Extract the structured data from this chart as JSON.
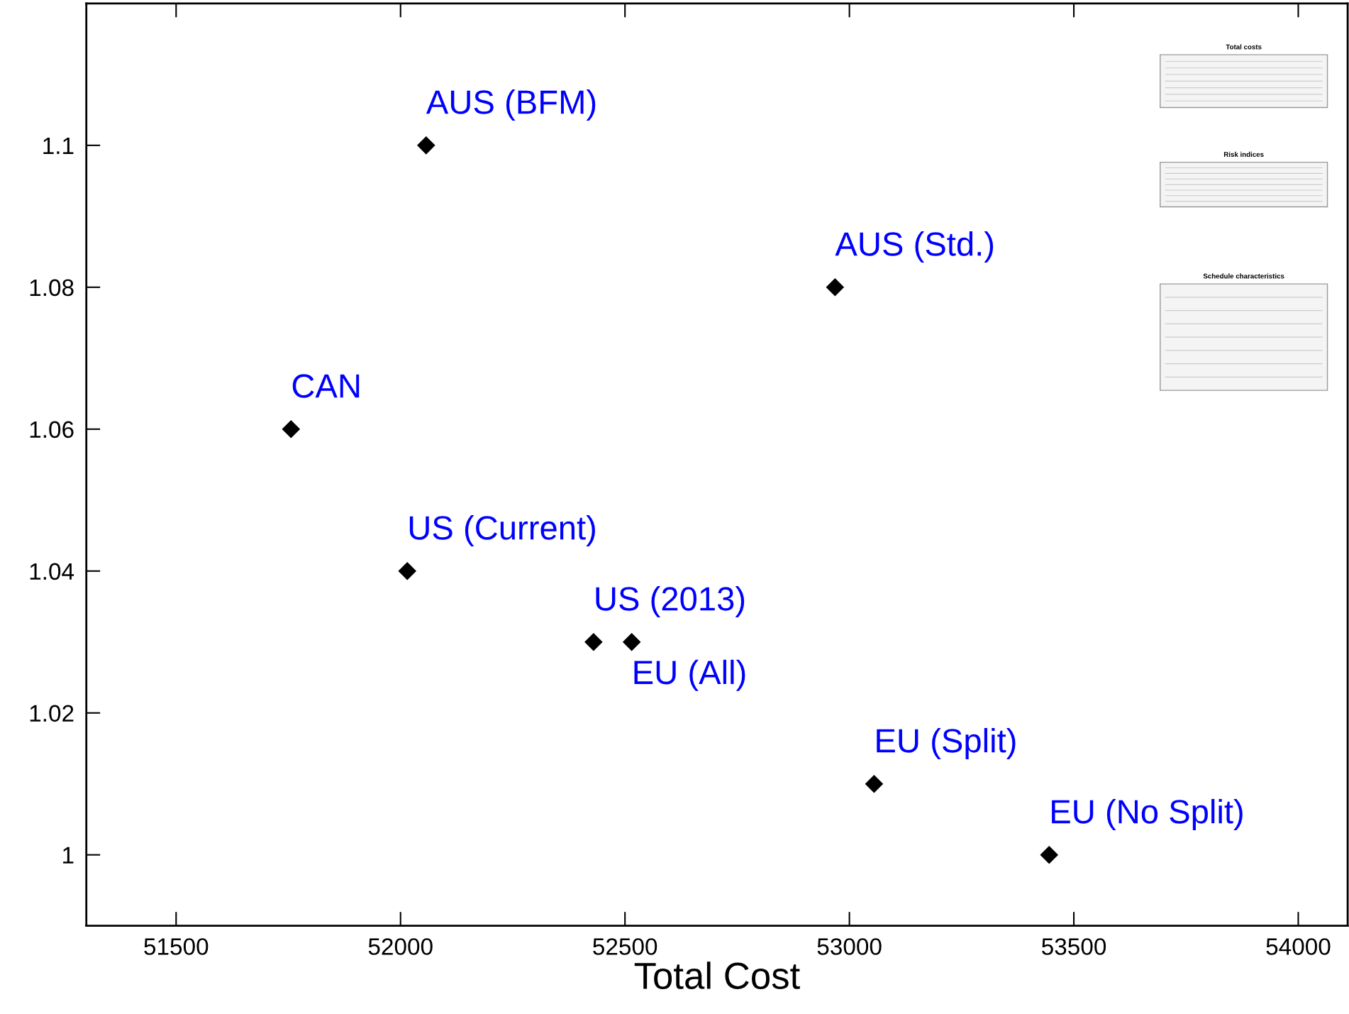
{
  "chart_data": {
    "type": "scatter",
    "xlabel": "Total Cost",
    "series": [
      {
        "color": "#000000",
        "x": [
          52057,
          52968,
          51756,
          52015,
          52430,
          52515,
          53055,
          53445
        ],
        "values": [
          1.1,
          1.08,
          1.06,
          1.04,
          1.03,
          1.03,
          1.01,
          1
        ]
      }
    ],
    "marker": "diamond",
    "annotations": [
      {
        "text": "AUS (BFM)",
        "x": 52057,
        "y": 1.1
      },
      {
        "text": "AUS (Std.)",
        "x": 52968,
        "y": 1.08
      },
      {
        "text": "CAN",
        "x": 51756,
        "y": 1.06
      },
      {
        "text": "US (Current)",
        "x": 52015,
        "y": 1.04
      },
      {
        "text": "US (2013)",
        "x": 52430,
        "y": 1.03
      },
      {
        "text": "EU (All)",
        "x": 52515,
        "y": 1.03
      },
      {
        "text": "EU (Split)",
        "x": 53055,
        "y": 1.01
      },
      {
        "text": "EU (No Split)",
        "x": 53445,
        "y": 1
      },
      "Total costs",
      "Risk indices",
      "Schedule characteristics"
    ],
    "xlim": [
      51300,
      54110
    ],
    "xticks": [
      51500,
      52000,
      52500,
      53000,
      53500,
      54000
    ],
    "ylim": [
      0.99,
      1.12
    ],
    "yticks": [
      1,
      1.02,
      1.04,
      1.06,
      1.08,
      1.1
    ],
    "grid": false,
    "legend": false
  }
}
